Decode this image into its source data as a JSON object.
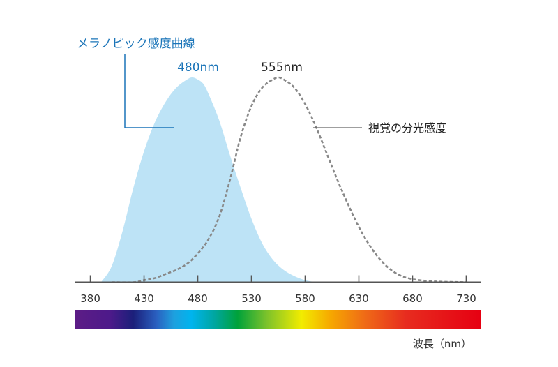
{
  "chart_data": {
    "type": "area",
    "xlabel": "波長（nm）",
    "ylabel": "",
    "xlim": [
      366,
      744
    ],
    "xticks": [
      380,
      430,
      480,
      530,
      580,
      630,
      680,
      730
    ],
    "tick_labels": [
      "380",
      "430",
      "480",
      "530",
      "580",
      "630",
      "680",
      "730"
    ],
    "grid": false,
    "series": [
      {
        "name": "メラノピック感度曲線",
        "style": "filled",
        "color": "#bde3f6",
        "peak_label": "480nm",
        "x": [
          390,
          400,
          410,
          420,
          430,
          440,
          450,
          460,
          470,
          475,
          480,
          485,
          490,
          500,
          510,
          520,
          530,
          540,
          550,
          560,
          570,
          580,
          590
        ],
        "y": [
          0.0,
          0.08,
          0.25,
          0.46,
          0.64,
          0.78,
          0.88,
          0.95,
          0.99,
          1.0,
          0.99,
          0.97,
          0.92,
          0.79,
          0.62,
          0.46,
          0.31,
          0.19,
          0.11,
          0.06,
          0.03,
          0.01,
          0.0
        ]
      },
      {
        "name": "視覚の分光感度",
        "style": "dashed",
        "color": "#888888",
        "peak_label": "555nm",
        "x": [
          400,
          420,
          430,
          440,
          450,
          460,
          470,
          480,
          490,
          500,
          510,
          520,
          530,
          540,
          550,
          555,
          560,
          570,
          580,
          590,
          600,
          610,
          620,
          630,
          640,
          650,
          660,
          670,
          680,
          690,
          700,
          710,
          720,
          730
        ],
        "y": [
          0.0,
          0.0,
          0.01,
          0.02,
          0.04,
          0.06,
          0.09,
          0.14,
          0.21,
          0.32,
          0.5,
          0.71,
          0.86,
          0.95,
          0.99,
          1.0,
          0.99,
          0.95,
          0.87,
          0.76,
          0.63,
          0.5,
          0.38,
          0.27,
          0.18,
          0.11,
          0.06,
          0.03,
          0.015,
          0.008,
          0.004,
          0.002,
          0.001,
          0.0
        ]
      }
    ]
  },
  "spectrum": {
    "stops": [
      {
        "nm": 380,
        "color": "#5c1c86"
      },
      {
        "nm": 410,
        "color": "#4d1a8a"
      },
      {
        "nm": 430,
        "color": "#1b1f7a"
      },
      {
        "nm": 450,
        "color": "#2a60c0"
      },
      {
        "nm": 465,
        "color": "#1ea0de"
      },
      {
        "nm": 480,
        "color": "#00b4ee"
      },
      {
        "nm": 500,
        "color": "#00a6a0"
      },
      {
        "nm": 520,
        "color": "#00a23a"
      },
      {
        "nm": 545,
        "color": "#7cc22b"
      },
      {
        "nm": 575,
        "color": "#f2ec00"
      },
      {
        "nm": 600,
        "color": "#f6a800"
      },
      {
        "nm": 630,
        "color": "#ef6a17"
      },
      {
        "nm": 665,
        "color": "#e72c1f"
      },
      {
        "nm": 730,
        "color": "#e60012"
      }
    ]
  },
  "colors": {
    "axis": "#555555",
    "melanopic_text": "#1a74b8",
    "photopic_text": "#222222"
  }
}
